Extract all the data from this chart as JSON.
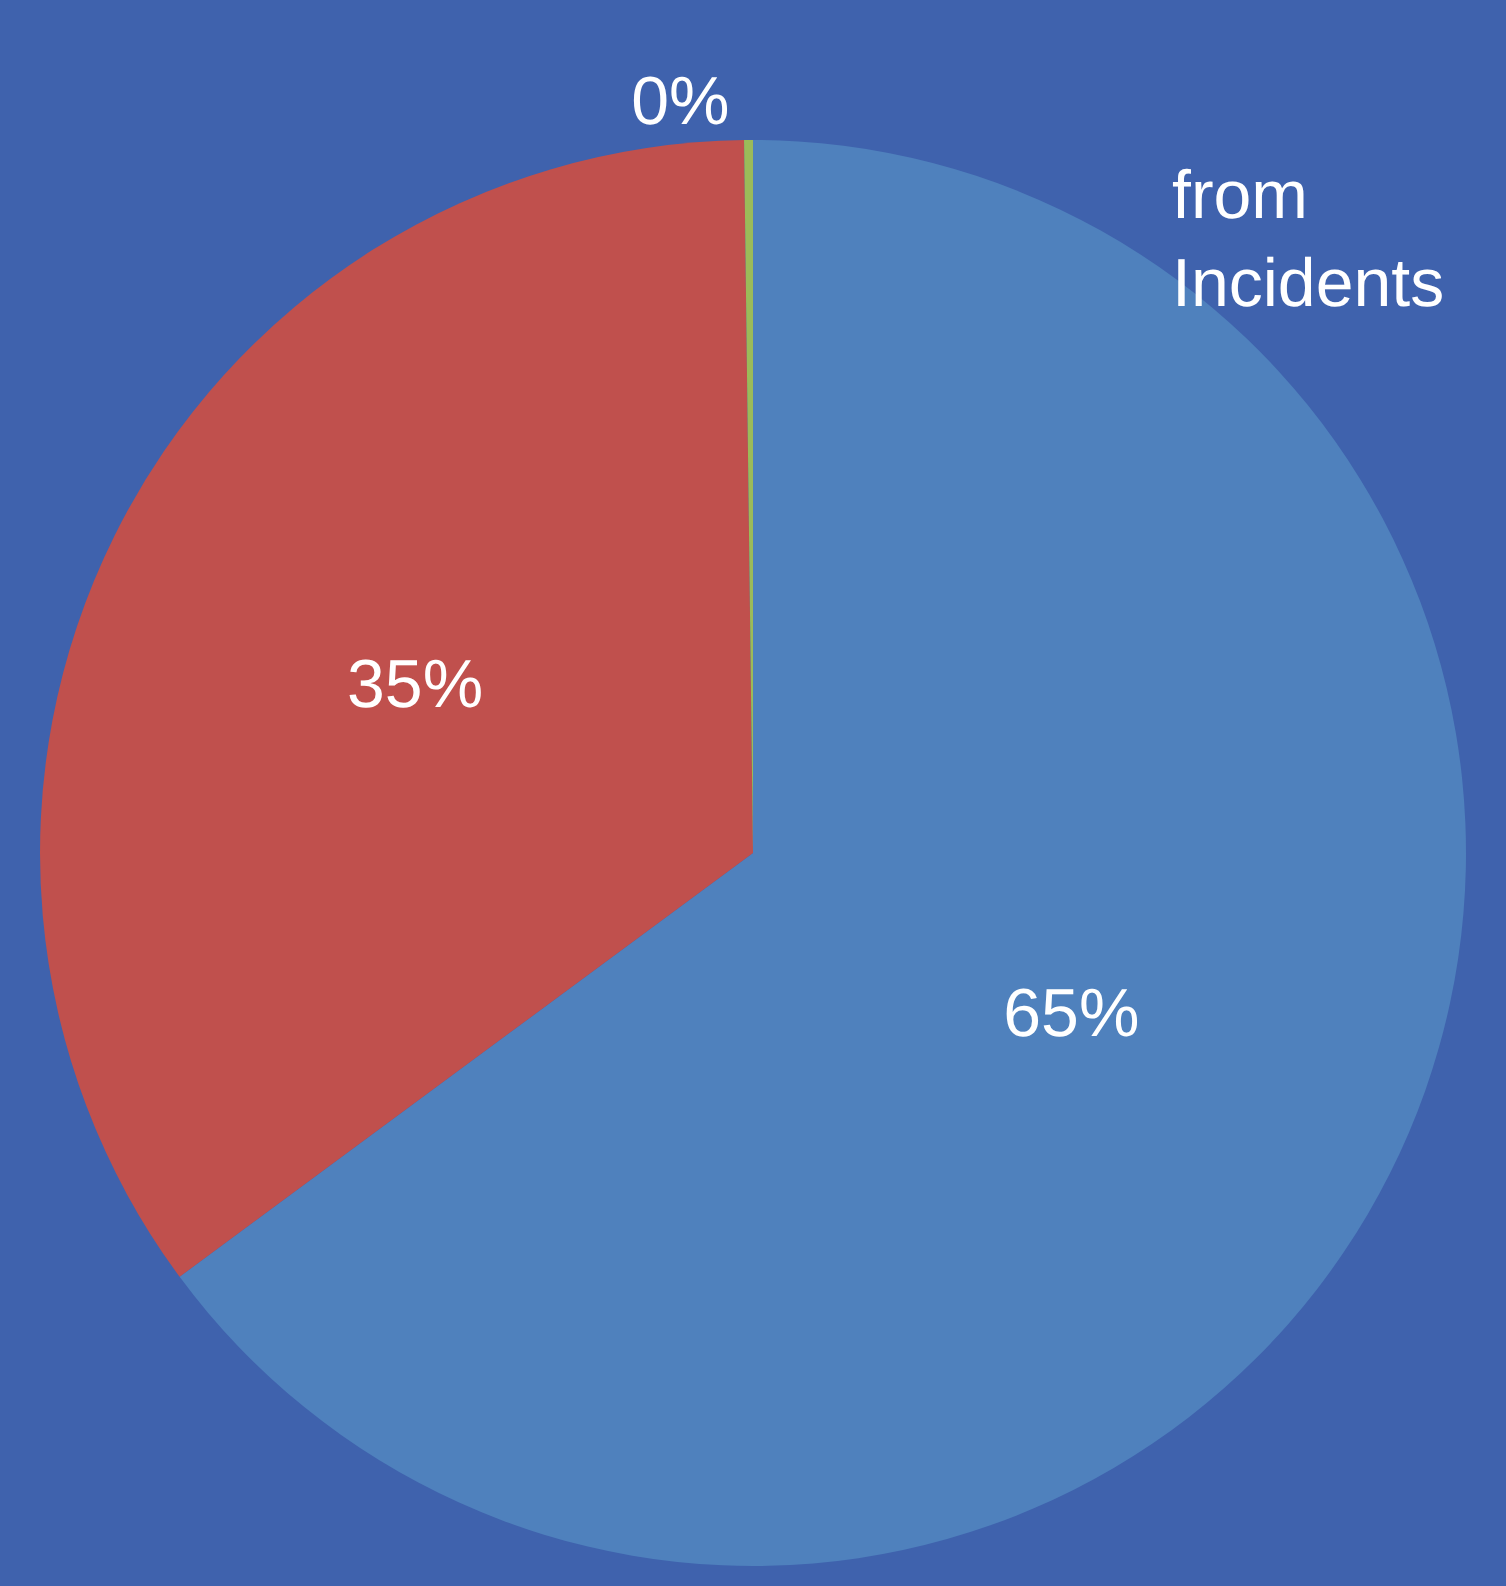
{
  "chart_data": {
    "type": "pie",
    "categories": [
      null,
      null,
      null
    ],
    "values": [
      65,
      35,
      0.2
    ],
    "colors": [
      "#4f81bd",
      "#c0504d",
      "#9bbb59"
    ],
    "value_labels": [
      "65%",
      "35%",
      "0%"
    ],
    "annotations": [
      "from\nIncidents"
    ],
    "legend": false
  }
}
